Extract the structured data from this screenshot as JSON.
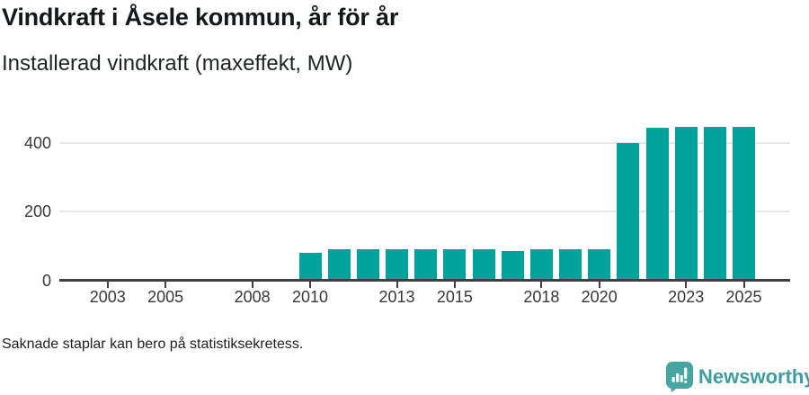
{
  "header": {
    "title": "Vindkraft i Åsele kommun, år för år",
    "subtitle": "Installerad vindkraft (maxeffekt, MW)"
  },
  "footer": {
    "note": "Saknade staplar kan bero på statistiksekretess.",
    "brand": "Newsworthy",
    "brand_icon": "newsworthy-chart-speech-bubble-icon"
  },
  "colors": {
    "bar": "#00a39c",
    "axis": "#3f3f3f",
    "gridline": "#e7e7e7",
    "tick_label": "#383838",
    "logo_bubble": "#46a5a2",
    "logo_text": "#3f9d9f"
  },
  "chart_data": {
    "type": "bar",
    "title": "Vindkraft i Åsele kommun, år för år",
    "subtitle": "Installerad vindkraft (maxeffekt, MW)",
    "xlabel": "",
    "ylabel": "Installerad vindkraft (maxeffekt, MW)",
    "categories": [
      2002,
      2003,
      2004,
      2005,
      2006,
      2007,
      2008,
      2009,
      2010,
      2011,
      2012,
      2013,
      2014,
      2015,
      2016,
      2017,
      2018,
      2019,
      2020,
      2021,
      2022,
      2023,
      2024,
      2025
    ],
    "values": [
      null,
      null,
      null,
      null,
      null,
      null,
      null,
      null,
      80,
      90,
      90,
      90,
      90,
      90,
      90,
      85,
      90,
      90,
      90,
      398,
      442,
      447,
      447,
      447
    ],
    "labeled_xticks": [
      2003,
      2005,
      2008,
      2010,
      2013,
      2015,
      2018,
      2020,
      2023,
      2025
    ],
    "yticks": [
      0,
      200,
      400
    ],
    "ylim": [
      0,
      470
    ],
    "grid": "horizontal-only",
    "legend": "none",
    "missing_data_note": "Saknade staplar kan bero på statistiksekretess."
  }
}
